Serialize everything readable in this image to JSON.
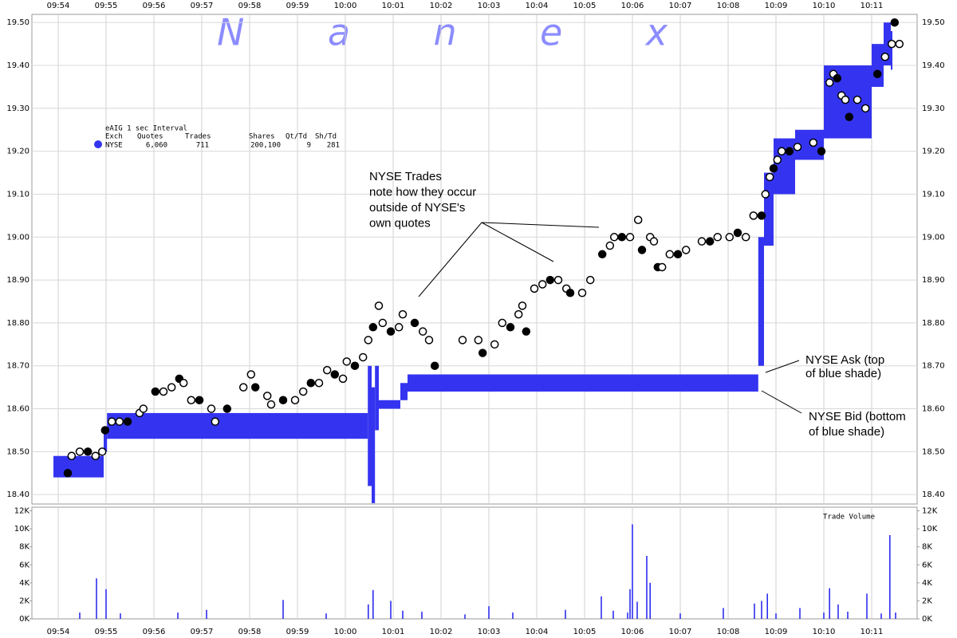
{
  "watermark": "Nanex",
  "legend": {
    "title": "eAIG 1 sec Interval",
    "columns": [
      "Exch",
      "Quotes",
      "Trades",
      "Shares",
      "Qt/Td",
      "Sh/Td"
    ],
    "rows": [
      [
        "NYSE",
        "6,060",
        "711",
        "200,100",
        "9",
        "281"
      ]
    ]
  },
  "annotations": [
    {
      "lines": [
        "NYSE Trades",
        "note how they occur",
        "outside of NYSE's",
        "own quotes"
      ]
    },
    {
      "lines": [
        "NYSE Ask (top",
        "of blue shade)"
      ]
    },
    {
      "lines": [
        "NYSE Bid (bottom",
        "of blue shade)"
      ]
    }
  ],
  "chart_data": [
    {
      "type": "price",
      "xlim": [
        -0.55,
        17.95
      ],
      "xticks": [
        {
          "value": 0,
          "label": "09:54"
        },
        {
          "value": 1,
          "label": "09:55"
        },
        {
          "value": 2,
          "label": "09:56"
        },
        {
          "value": 3,
          "label": "09:57"
        },
        {
          "value": 4,
          "label": "09:58"
        },
        {
          "value": 5,
          "label": "09:59"
        },
        {
          "value": 6,
          "label": "10:00"
        },
        {
          "value": 7,
          "label": "10:01"
        },
        {
          "value": 8,
          "label": "10:02"
        },
        {
          "value": 9,
          "label": "10:03"
        },
        {
          "value": 10,
          "label": "10:04"
        },
        {
          "value": 11,
          "label": "10:05"
        },
        {
          "value": 12,
          "label": "10:06"
        },
        {
          "value": 13,
          "label": "10:07"
        },
        {
          "value": 14,
          "label": "10:08"
        },
        {
          "value": 15,
          "label": "10:09"
        },
        {
          "value": 16,
          "label": "10:10"
        },
        {
          "value": 17,
          "label": "10:11"
        }
      ],
      "ylim": [
        18.378,
        19.519
      ],
      "yticks": [
        {
          "value": 18.4,
          "label": "18.40"
        },
        {
          "value": 18.5,
          "label": "18.50"
        },
        {
          "value": 18.6,
          "label": "18.60"
        },
        {
          "value": 18.7,
          "label": "18.70"
        },
        {
          "value": 18.8,
          "label": "18.80"
        },
        {
          "value": 18.9,
          "label": "18.90"
        },
        {
          "value": 19,
          "label": "19.00"
        },
        {
          "value": 19.1,
          "label": "19.10"
        },
        {
          "value": 19.2,
          "label": "19.20"
        },
        {
          "value": 19.3,
          "label": "19.30"
        },
        {
          "value": 19.4,
          "label": "19.40"
        },
        {
          "value": 19.5,
          "label": "19.50"
        }
      ],
      "grid": true,
      "series": [
        {
          "name": "NYSE",
          "type": "band",
          "color": "#3434f0",
          "x": [
            -0.1,
            0.95,
            1.02,
            6.47,
            6.55,
            6.62,
            6.7,
            7.15,
            7.3,
            14.63,
            14.75,
            14.95,
            15.4,
            16.0,
            17.0,
            17.25,
            17.4
          ],
          "ask": [
            18.49,
            18.55,
            18.59,
            18.7,
            18.65,
            18.7,
            18.62,
            18.66,
            18.68,
            19.0,
            19.15,
            19.23,
            19.25,
            19.4,
            19.45,
            19.5,
            19.48
          ],
          "bid": [
            18.44,
            18.5,
            18.53,
            18.42,
            18.38,
            18.55,
            18.6,
            18.62,
            18.64,
            18.7,
            18.98,
            19.1,
            19.18,
            19.23,
            19.35,
            19.4,
            19.39
          ]
        },
        {
          "type": "scatter",
          "color": "#000000",
          "x": [
            0.2,
            0.28,
            0.45,
            0.62,
            0.78,
            0.92,
            0.98,
            1.12,
            1.28,
            1.45,
            1.7,
            1.78,
            2.03,
            2.2,
            2.37,
            2.53,
            2.62,
            2.78,
            2.95,
            3.2,
            3.28,
            3.53,
            3.87,
            4.03,
            4.12,
            4.37,
            4.45,
            4.7,
            4.95,
            5.12,
            5.28,
            5.45,
            5.62,
            5.78,
            5.95,
            6.03,
            6.2,
            6.37,
            6.48,
            6.58,
            6.7,
            6.78,
            6.95,
            7.12,
            7.2,
            7.45,
            7.62,
            7.75,
            7.87,
            8.45,
            8.78,
            8.87,
            9.12,
            9.28,
            9.45,
            9.62,
            9.7,
            9.78,
            9.95,
            10.12,
            10.28,
            10.45,
            10.62,
            10.7,
            10.95,
            11.12,
            11.37,
            11.53,
            11.62,
            11.78,
            11.95,
            12.12,
            12.2,
            12.37,
            12.45,
            12.53,
            12.62,
            12.78,
            12.95,
            13.12,
            13.45,
            13.62,
            13.78,
            14.03,
            14.2,
            14.37,
            14.53,
            14.7,
            14.78,
            14.87,
            14.95,
            15.03,
            15.12,
            15.28,
            15.45,
            15.78,
            15.95,
            16.12,
            16.2,
            16.28,
            16.37,
            16.45,
            16.53,
            16.7,
            16.87,
            17.12,
            17.28,
            17.42,
            17.48,
            17.58
          ],
          "values": [
            18.45,
            18.49,
            18.5,
            18.5,
            18.49,
            18.5,
            18.55,
            18.57,
            18.57,
            18.57,
            18.59,
            18.6,
            18.64,
            18.64,
            18.65,
            18.67,
            18.66,
            18.62,
            18.62,
            18.6,
            18.57,
            18.6,
            18.65,
            18.68,
            18.65,
            18.63,
            18.61,
            18.62,
            18.62,
            18.64,
            18.66,
            18.66,
            18.69,
            18.68,
            18.67,
            18.71,
            18.7,
            18.72,
            18.76,
            18.79,
            18.84,
            18.8,
            18.78,
            18.79,
            18.82,
            18.8,
            18.78,
            18.76,
            18.7,
            18.76,
            18.76,
            18.73,
            18.75,
            18.8,
            18.79,
            18.82,
            18.84,
            18.78,
            18.88,
            18.89,
            18.9,
            18.9,
            18.88,
            18.87,
            18.87,
            18.9,
            18.96,
            18.98,
            19.0,
            19.0,
            19.0,
            19.04,
            18.97,
            19.0,
            18.99,
            18.93,
            18.93,
            18.96,
            18.96,
            18.97,
            18.99,
            18.99,
            19.0,
            19.0,
            19.01,
            19.0,
            19.05,
            19.05,
            19.1,
            19.14,
            19.16,
            19.18,
            19.2,
            19.2,
            19.21,
            19.22,
            19.2,
            19.36,
            19.38,
            19.37,
            19.33,
            19.32,
            19.28,
            19.32,
            19.3,
            19.38,
            19.42,
            19.45,
            19.5,
            19.45
          ]
        }
      ]
    },
    {
      "type": "bar",
      "title": "Trade Volume",
      "color": "#2020ee",
      "xlim": [
        -0.55,
        17.95
      ],
      "xticks": [
        {
          "value": 0,
          "label": "09:54"
        },
        {
          "value": 1,
          "label": "09:55"
        },
        {
          "value": 2,
          "label": "09:56"
        },
        {
          "value": 3,
          "label": "09:57"
        },
        {
          "value": 4,
          "label": "09:58"
        },
        {
          "value": 5,
          "label": "09:59"
        },
        {
          "value": 6,
          "label": "10:00"
        },
        {
          "value": 7,
          "label": "10:01"
        },
        {
          "value": 8,
          "label": "10:02"
        },
        {
          "value": 9,
          "label": "10:03"
        },
        {
          "value": 10,
          "label": "10:04"
        },
        {
          "value": 11,
          "label": "10:05"
        },
        {
          "value": 12,
          "label": "10:06"
        },
        {
          "value": 13,
          "label": "10:07"
        },
        {
          "value": 14,
          "label": "10:08"
        },
        {
          "value": 15,
          "label": "10:09"
        },
        {
          "value": 16,
          "label": "10:10"
        },
        {
          "value": 17,
          "label": "10:11"
        }
      ],
      "ylim": [
        0,
        12400
      ],
      "yticks": [
        {
          "value": 0,
          "label": "0K"
        },
        {
          "value": 2000,
          "label": "2K"
        },
        {
          "value": 4000,
          "label": "4K"
        },
        {
          "value": 6000,
          "label": "6K"
        },
        {
          "value": 8000,
          "label": "8K"
        },
        {
          "value": 10000,
          "label": "10K"
        },
        {
          "value": 12000,
          "label": "12K"
        }
      ],
      "x": [
        0.45,
        0.8,
        1.0,
        1.3,
        2.5,
        3.1,
        4.7,
        5.6,
        6.48,
        6.58,
        6.95,
        7.2,
        7.6,
        8.5,
        9.0,
        9.5,
        10.6,
        11.35,
        11.6,
        11.9,
        11.95,
        12.0,
        12.1,
        12.3,
        12.37,
        13.0,
        13.9,
        14.55,
        14.7,
        14.82,
        15.0,
        15.5,
        16.0,
        16.12,
        16.3,
        16.5,
        16.9,
        17.2,
        17.38,
        17.5
      ],
      "values": [
        700,
        4500,
        3300,
        600,
        700,
        1000,
        2100,
        600,
        1600,
        3200,
        2000,
        900,
        800,
        500,
        1400,
        700,
        1000,
        2500,
        900,
        700,
        3300,
        10500,
        1900,
        7000,
        4000,
        600,
        1200,
        1700,
        2000,
        2800,
        600,
        1200,
        700,
        3400,
        1600,
        800,
        2800,
        600,
        9300,
        700
      ]
    }
  ]
}
